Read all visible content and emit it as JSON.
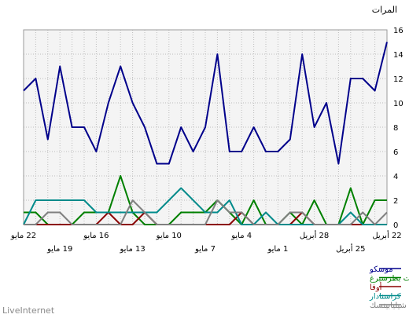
{
  "chart_data": {
    "type": "line",
    "ylabel": "المرات",
    "ylim": [
      0,
      16
    ],
    "yticks": [
      0,
      2,
      4,
      6,
      8,
      10,
      12,
      14,
      16
    ],
    "grid": true,
    "legend_position": "bottom-right",
    "x_upper_labels": [
      "22 مايو",
      "16 مايو",
      "10 مايو",
      "4 مايو",
      "28 أبريل",
      "22 أبريل"
    ],
    "x_lower_labels": [
      "19 مايو",
      "13 مايو",
      "7 مايو",
      "1 مايو",
      "25 أبريل"
    ],
    "series": [
      {
        "name": "موسكو",
        "color": "#00008b",
        "values": [
          11,
          12,
          7,
          13,
          8,
          8,
          6,
          10,
          13,
          10,
          8,
          5,
          5,
          8,
          6,
          8,
          14,
          6,
          6,
          8,
          6,
          6,
          7,
          14,
          8,
          10,
          5,
          12,
          12,
          11,
          15
        ]
      },
      {
        "name": "سانت بطرسبرغ",
        "color": "#008000",
        "values": [
          1,
          1,
          0,
          0,
          0,
          1,
          1,
          1,
          4,
          1,
          0,
          0,
          0,
          1,
          1,
          1,
          2,
          1,
          0,
          2,
          0,
          0,
          1,
          0,
          2,
          0,
          0,
          3,
          0,
          2,
          2
        ]
      },
      {
        "name": "أوفا",
        "color": "#8b0000",
        "values": [
          0,
          0,
          0,
          0,
          0,
          0,
          0,
          1,
          0,
          0,
          1,
          0,
          0,
          0,
          0,
          0,
          0,
          0,
          1,
          0,
          0,
          0,
          0,
          1,
          0,
          0,
          0,
          0,
          0,
          0,
          0
        ]
      },
      {
        "name": "كراسنادار",
        "color": "#008b8b",
        "values": [
          0,
          2,
          2,
          2,
          2,
          2,
          1,
          1,
          1,
          1,
          1,
          1,
          2,
          3,
          2,
          1,
          1,
          2,
          0,
          0,
          1,
          0,
          0,
          0,
          0,
          0,
          0,
          1,
          0,
          0,
          0
        ]
      },
      {
        "name": "شيليابينسك",
        "color": "#808080",
        "values": [
          0,
          0,
          1,
          1,
          0,
          0,
          0,
          0,
          0,
          2,
          1,
          0,
          0,
          0,
          0,
          0,
          2,
          1,
          1,
          0,
          0,
          0,
          1,
          1,
          0,
          0,
          0,
          0,
          1,
          0,
          1
        ]
      }
    ]
  },
  "brand": "LiveInternet"
}
